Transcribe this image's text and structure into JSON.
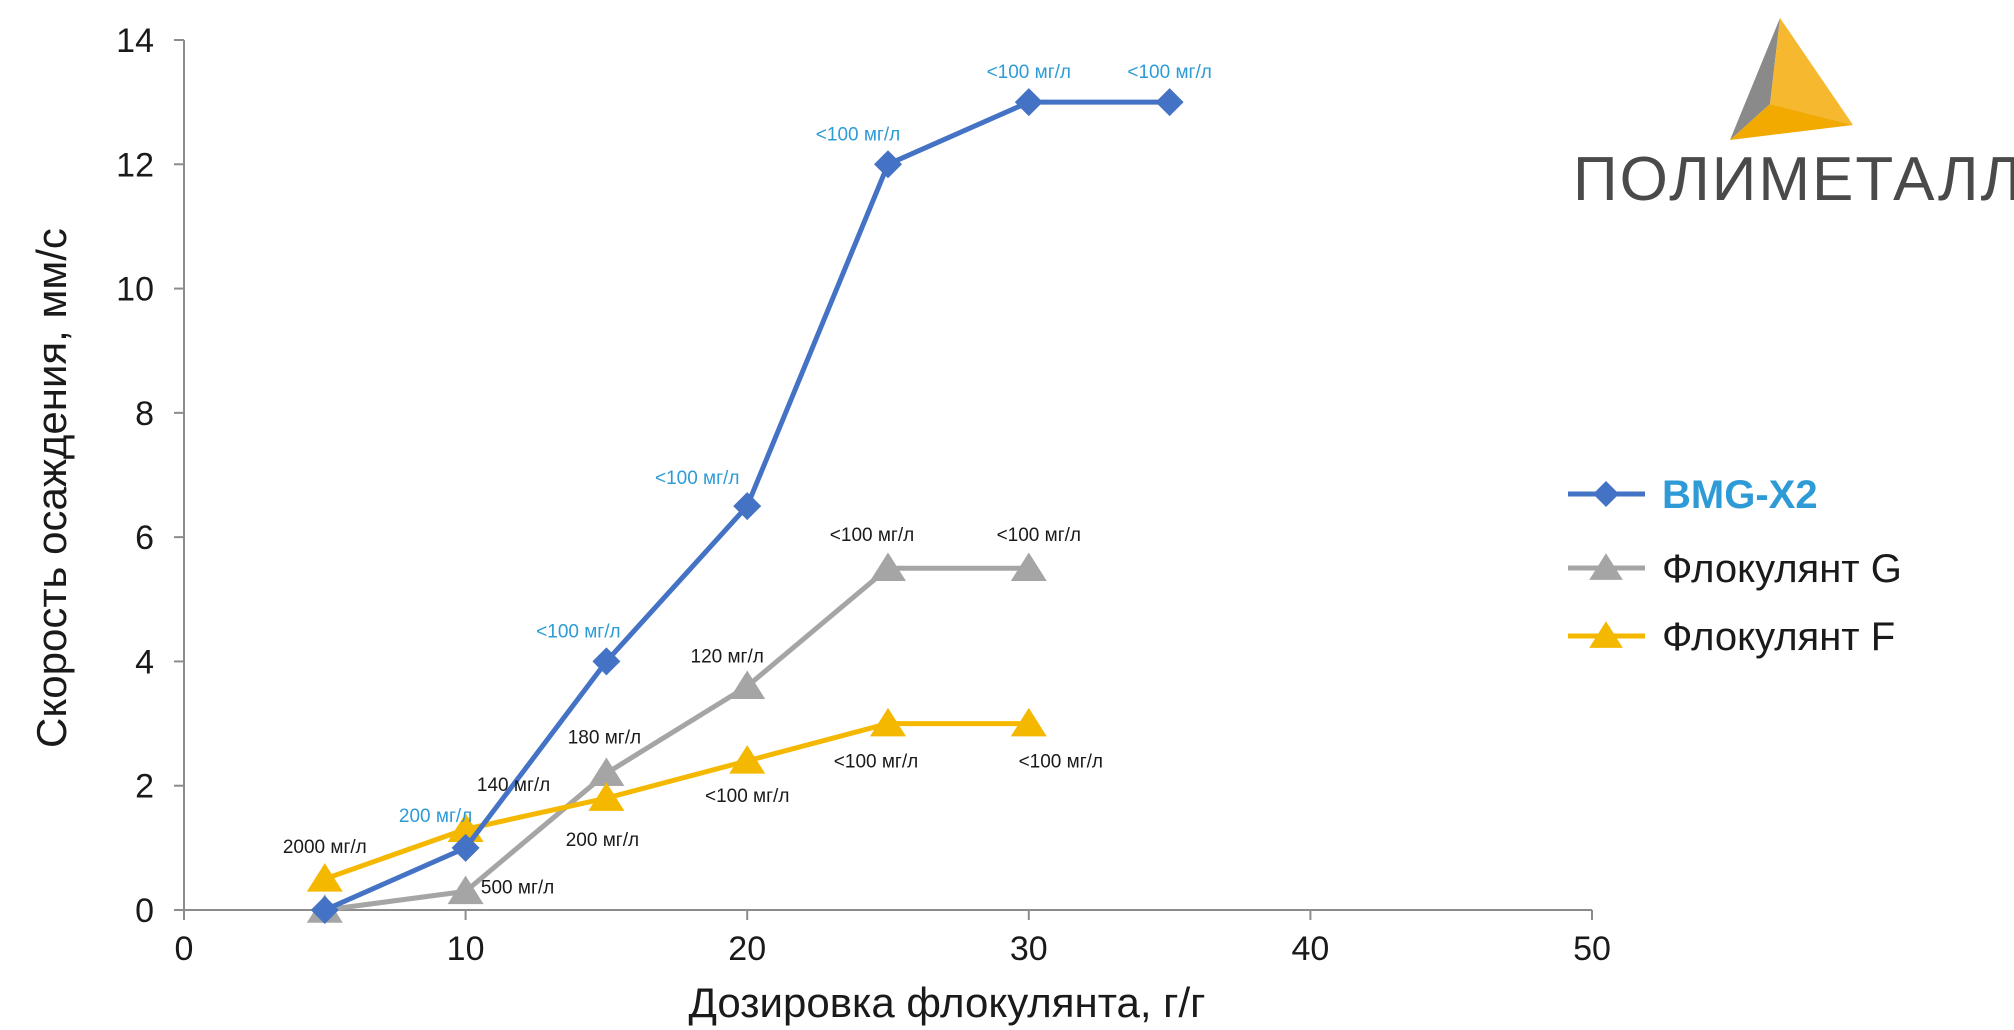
{
  "chart_data": {
    "type": "line",
    "xlabel": "Дозировка флокулянта, г/г",
    "ylabel": "Скорость осаждения, мм/с",
    "xlim": [
      0,
      50
    ],
    "ylim": [
      0,
      14
    ],
    "xticks": [
      0,
      10,
      20,
      30,
      40,
      50
    ],
    "yticks": [
      0,
      2,
      4,
      6,
      8,
      10,
      12,
      14
    ],
    "grid": false,
    "legend_position": "right",
    "series": [
      {
        "name": "BMG-X2",
        "color": "#4472C4",
        "label_color": "#2E9BD6",
        "marker": "diamond",
        "x": [
          5,
          10,
          15,
          20,
          25,
          30,
          35
        ],
        "y": [
          0,
          1,
          4,
          6.5,
          12,
          13,
          13
        ],
        "labels": [
          "",
          "200 мг/л",
          "<100 мг/л",
          "<100 мг/л",
          "<100 мг/л",
          "<100 мг/л",
          "<100 мг/л"
        ]
      },
      {
        "name": "Флокулянт G",
        "color": "#A5A5A5",
        "label_color": "#1a1a1a",
        "marker": "triangle",
        "x": [
          5,
          10,
          15,
          20,
          25,
          30
        ],
        "y": [
          0,
          0.3,
          2.2,
          3.6,
          5.5,
          5.5
        ],
        "labels": [
          "",
          "500 мг/л",
          "180 мг/л",
          "120 мг/л",
          "<100 мг/л",
          "<100 мг/л"
        ]
      },
      {
        "name": "Флокулянт F",
        "color": "#F5B800",
        "label_color": "#1a1a1a",
        "marker": "triangle",
        "x": [
          5,
          10,
          15,
          20,
          25,
          30
        ],
        "y": [
          0.5,
          1.3,
          1.8,
          2.4,
          3,
          3
        ],
        "labels": [
          "2000 мг/л",
          "140 мг/л",
          "200 мг/л",
          "<100 мг/л",
          "<100 мг/л",
          "<100 мг/л"
        ]
      }
    ]
  },
  "logo": {
    "text": "ПОЛИМЕТАЛЛ"
  }
}
